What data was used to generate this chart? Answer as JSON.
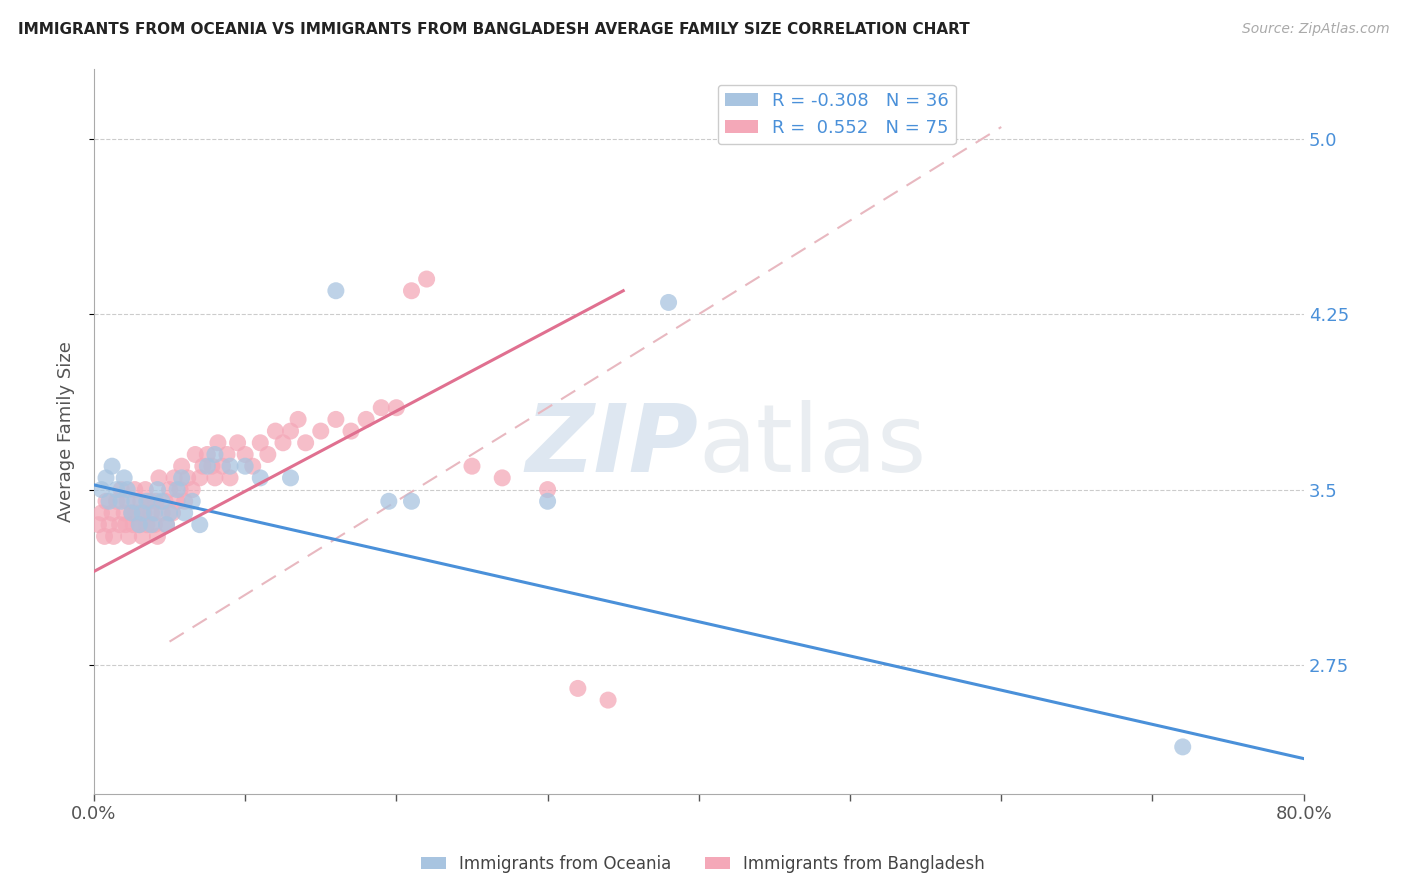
{
  "title": "IMMIGRANTS FROM OCEANIA VS IMMIGRANTS FROM BANGLADESH AVERAGE FAMILY SIZE CORRELATION CHART",
  "source": "Source: ZipAtlas.com",
  "ylabel": "Average Family Size",
  "xlim": [
    0.0,
    0.8
  ],
  "ylim": [
    2.2,
    5.3
  ],
  "yticks": [
    2.75,
    3.5,
    4.25,
    5.0
  ],
  "xticks": [
    0.0,
    0.1,
    0.2,
    0.3,
    0.4,
    0.5,
    0.6,
    0.7,
    0.8
  ],
  "xticklabels": [
    "0.0%",
    "",
    "",
    "",
    "",
    "",
    "",
    "",
    "80.0%"
  ],
  "R_oceania": -0.308,
  "N_oceania": 36,
  "R_bangladesh": 0.552,
  "N_bangladesh": 75,
  "color_oceania": "#a8c4e0",
  "color_bangladesh": "#f4a8b8",
  "color_oceania_line": "#4a90d9",
  "color_bangladesh_line": "#e07090",
  "color_diag_line": "#e8b8c0",
  "watermark_zip": "ZIP",
  "watermark_atlas": "atlas",
  "legend_label_oceania": "Immigrants from Oceania",
  "legend_label_bangladesh": "Immigrants from Bangladesh",
  "oceania_line_x": [
    0.0,
    0.8
  ],
  "oceania_line_y": [
    3.52,
    2.35
  ],
  "bangladesh_line_x": [
    0.0,
    0.35
  ],
  "bangladesh_line_y": [
    3.15,
    4.35
  ],
  "diag_line_x": [
    0.05,
    0.6
  ],
  "diag_line_y": [
    2.85,
    5.05
  ],
  "oceania_points_x": [
    0.005,
    0.008,
    0.01,
    0.012,
    0.015,
    0.018,
    0.02,
    0.022,
    0.025,
    0.027,
    0.03,
    0.032,
    0.035,
    0.038,
    0.04,
    0.042,
    0.045,
    0.048,
    0.05,
    0.055,
    0.058,
    0.06,
    0.065,
    0.07,
    0.075,
    0.08,
    0.09,
    0.1,
    0.11,
    0.13,
    0.16,
    0.195,
    0.21,
    0.3,
    0.38,
    0.72
  ],
  "oceania_points_y": [
    3.5,
    3.55,
    3.45,
    3.6,
    3.5,
    3.45,
    3.55,
    3.5,
    3.4,
    3.45,
    3.35,
    3.4,
    3.45,
    3.35,
    3.4,
    3.5,
    3.45,
    3.35,
    3.4,
    3.5,
    3.55,
    3.4,
    3.45,
    3.35,
    3.6,
    3.65,
    3.6,
    3.6,
    3.55,
    3.55,
    4.35,
    3.45,
    3.45,
    3.45,
    4.3,
    2.4
  ],
  "bangladesh_points_x": [
    0.003,
    0.005,
    0.007,
    0.008,
    0.01,
    0.012,
    0.013,
    0.015,
    0.017,
    0.018,
    0.02,
    0.021,
    0.022,
    0.023,
    0.025,
    0.026,
    0.027,
    0.028,
    0.03,
    0.031,
    0.032,
    0.033,
    0.034,
    0.035,
    0.037,
    0.038,
    0.04,
    0.041,
    0.042,
    0.043,
    0.045,
    0.047,
    0.048,
    0.05,
    0.052,
    0.053,
    0.055,
    0.057,
    0.058,
    0.06,
    0.062,
    0.065,
    0.067,
    0.07,
    0.072,
    0.075,
    0.078,
    0.08,
    0.082,
    0.085,
    0.088,
    0.09,
    0.095,
    0.1,
    0.105,
    0.11,
    0.115,
    0.12,
    0.125,
    0.13,
    0.135,
    0.14,
    0.15,
    0.16,
    0.17,
    0.18,
    0.19,
    0.2,
    0.21,
    0.22,
    0.25,
    0.27,
    0.3,
    0.32,
    0.34
  ],
  "bangladesh_points_y": [
    3.35,
    3.4,
    3.3,
    3.45,
    3.35,
    3.4,
    3.3,
    3.45,
    3.35,
    3.5,
    3.4,
    3.35,
    3.45,
    3.3,
    3.4,
    3.35,
    3.5,
    3.4,
    3.35,
    3.45,
    3.3,
    3.4,
    3.5,
    3.35,
    3.45,
    3.4,
    3.35,
    3.45,
    3.3,
    3.55,
    3.4,
    3.45,
    3.35,
    3.5,
    3.4,
    3.55,
    3.45,
    3.5,
    3.6,
    3.45,
    3.55,
    3.5,
    3.65,
    3.55,
    3.6,
    3.65,
    3.6,
    3.55,
    3.7,
    3.6,
    3.65,
    3.55,
    3.7,
    3.65,
    3.6,
    3.7,
    3.65,
    3.75,
    3.7,
    3.75,
    3.8,
    3.7,
    3.75,
    3.8,
    3.75,
    3.8,
    3.85,
    3.85,
    4.35,
    4.4,
    3.6,
    3.55,
    3.5,
    2.65,
    2.6
  ]
}
